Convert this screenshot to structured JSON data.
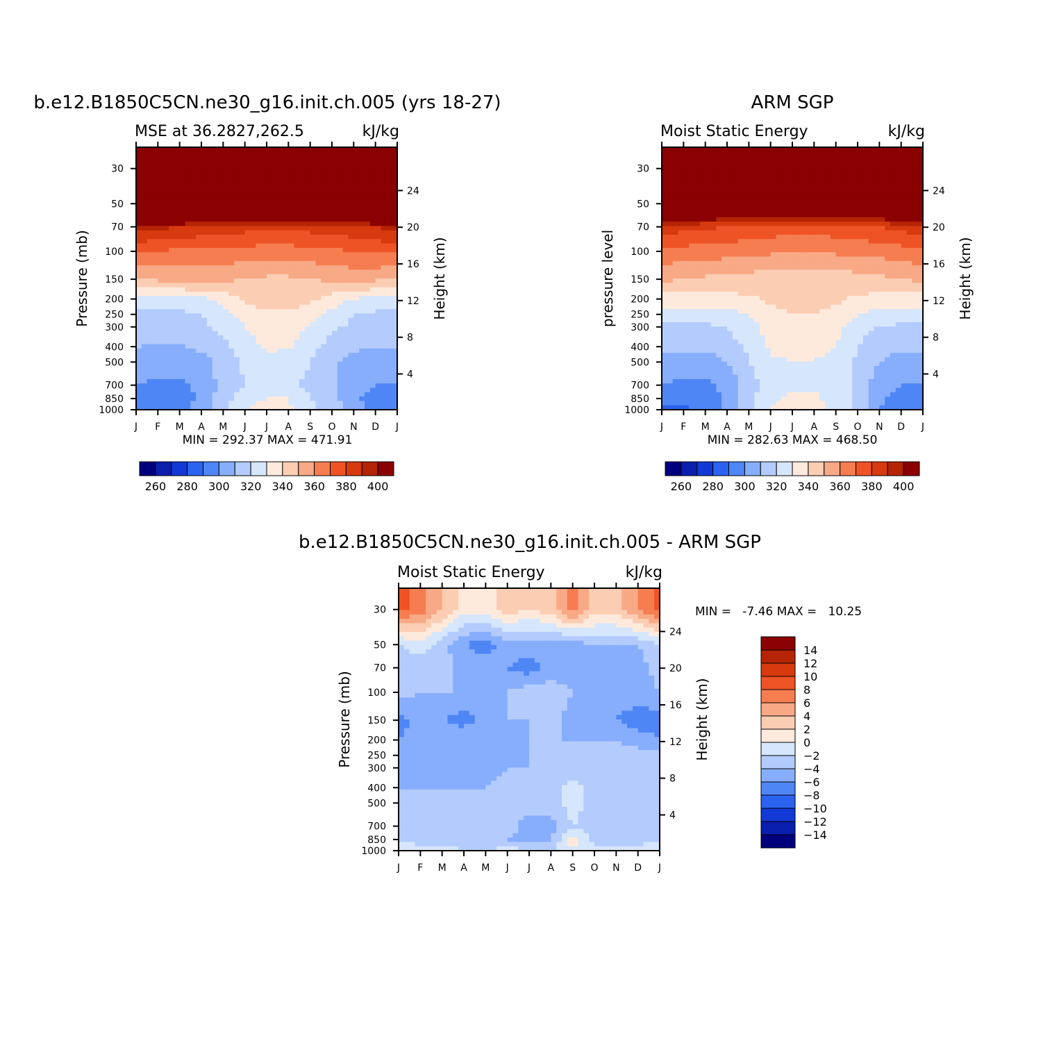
{
  "panel_a": {
    "title": "b.e12.B1850C5CN.ne30_g16.init.ch.005 (yrs 18-27)",
    "left_subtitle": "MSE at 36.2827,262.5",
    "right_subtitle": "kJ/kg",
    "ylabel": "Pressure (mb)",
    "right_ylabel": "Height (km)",
    "minmax": "MIN = 292.37 MAX = 471.91"
  },
  "panel_b": {
    "title": "ARM SGP",
    "left_subtitle": "Moist Static Energy",
    "right_subtitle": "kJ/kg",
    "ylabel": "pressure level",
    "right_ylabel": "Height (km)",
    "minmax": "MIN = 282.63 MAX = 468.50"
  },
  "panel_c": {
    "title": "b.e12.B1850C5CN.ne30_g16.init.ch.005 - ARM SGP",
    "left_subtitle": "Moist Static Energy",
    "right_subtitle": "kJ/kg",
    "ylabel": "Pressure (mb)",
    "right_ylabel": "Height (km)",
    "minmax": "MIN =   -7.46 MAX =   10.25"
  },
  "colors": {
    "scale": [
      "#00007f",
      "#0a1fae",
      "#1239d6",
      "#2b62ef",
      "#4f86f6",
      "#86aefc",
      "#b4cbfd",
      "#d5e6fd",
      "#feeadc",
      "#fbcdb3",
      "#f8a985",
      "#f67d50",
      "#ee5326",
      "#d63a0e",
      "#b42405",
      "#8b0000"
    ]
  },
  "chart_data": [
    {
      "type": "heatmap",
      "panel": "panel_a",
      "x": [
        "J",
        "F",
        "M",
        "A",
        "M",
        "J",
        "J",
        "A",
        "S",
        "O",
        "N",
        "D",
        "J"
      ],
      "pressure_ticks": [
        30,
        50,
        70,
        100,
        150,
        200,
        250,
        300,
        400,
        500,
        700,
        850,
        1000
      ],
      "height_ticks": [
        4,
        8,
        12,
        16,
        20,
        24
      ],
      "colorbar_levels": [
        260,
        270,
        280,
        290,
        300,
        310,
        320,
        330,
        340,
        350,
        360,
        370,
        380,
        390,
        400
      ],
      "colorbar_labels": [
        "260",
        "280",
        "300",
        "320",
        "340",
        "360",
        "380",
        "400"
      ],
      "units": "kJ/kg",
      "min": 292.37,
      "max": 471.91,
      "levels_mb": [
        30,
        50,
        70,
        100,
        150,
        200,
        250,
        300,
        400,
        500,
        700,
        850,
        1000
      ],
      "values": [
        [
          470,
          470,
          470,
          470,
          470,
          470,
          470,
          470,
          470,
          470,
          470,
          470,
          470
        ],
        [
          470,
          470,
          470,
          470,
          470,
          470,
          470,
          470,
          470,
          470,
          470,
          470,
          470
        ],
        [
          395,
          392,
          390,
          388,
          386,
          384,
          382,
          382,
          384,
          386,
          388,
          390,
          395
        ],
        [
          372,
          370,
          368,
          368,
          367,
          366,
          366,
          366,
          367,
          368,
          370,
          372,
          372
        ],
        [
          350,
          352,
          354,
          354,
          352,
          350,
          348,
          348,
          350,
          352,
          354,
          352,
          350
        ],
        [
          326,
          326,
          326,
          328,
          334,
          342,
          345,
          345,
          342,
          336,
          330,
          327,
          326
        ],
        [
          318,
          318,
          318,
          320,
          326,
          334,
          338,
          338,
          334,
          326,
          320,
          318,
          318
        ],
        [
          316,
          316,
          316,
          318,
          322,
          330,
          334,
          334,
          330,
          322,
          318,
          316,
          316
        ],
        [
          310,
          309,
          309,
          312,
          318,
          326,
          332,
          331,
          324,
          316,
          312,
          310,
          310
        ],
        [
          305,
          304,
          304,
          306,
          314,
          322,
          326,
          326,
          320,
          312,
          306,
          305,
          305
        ],
        [
          300,
          298,
          298,
          302,
          314,
          320,
          322,
          322,
          318,
          312,
          304,
          300,
          300
        ],
        [
          294,
          294,
          296,
          302,
          316,
          326,
          330,
          330,
          320,
          314,
          302,
          296,
          294
        ],
        [
          292,
          293,
          296,
          305,
          317,
          330,
          334,
          333,
          322,
          316,
          304,
          296,
          292
        ]
      ]
    },
    {
      "type": "heatmap",
      "panel": "panel_b",
      "x": [
        "J",
        "F",
        "M",
        "A",
        "M",
        "J",
        "J",
        "A",
        "S",
        "O",
        "N",
        "D",
        "J"
      ],
      "pressure_ticks": [
        30,
        50,
        70,
        100,
        150,
        200,
        250,
        300,
        400,
        500,
        700,
        850,
        1000
      ],
      "height_ticks": [
        4,
        8,
        12,
        16,
        20,
        24
      ],
      "colorbar_levels": [
        260,
        270,
        280,
        290,
        300,
        310,
        320,
        330,
        340,
        350,
        360,
        370,
        380,
        390,
        400
      ],
      "colorbar_labels": [
        "260",
        "280",
        "300",
        "320",
        "340",
        "360",
        "380",
        "400"
      ],
      "units": "kJ/kg",
      "min": 282.63,
      "max": 468.5,
      "levels_mb": [
        30,
        50,
        70,
        100,
        150,
        200,
        250,
        300,
        400,
        500,
        700,
        850,
        1000
      ],
      "values": [
        [
          468,
          468,
          468,
          468,
          468,
          468,
          468,
          468,
          468,
          468,
          468,
          468,
          468
        ],
        [
          440,
          440,
          440,
          440,
          440,
          440,
          440,
          440,
          440,
          440,
          440,
          440,
          440
        ],
        [
          385,
          384,
          382,
          380,
          378,
          376,
          375,
          375,
          376,
          378,
          380,
          384,
          385
        ],
        [
          368,
          366,
          365,
          364,
          363,
          362,
          361,
          361,
          362,
          363,
          364,
          366,
          368
        ],
        [
          352,
          350,
          348,
          348,
          346,
          344,
          343,
          343,
          344,
          346,
          348,
          350,
          352
        ],
        [
          335,
          336,
          336,
          337,
          338,
          342,
          344,
          344,
          342,
          338,
          337,
          336,
          335
        ],
        [
          326,
          326,
          326,
          327,
          330,
          336,
          340,
          340,
          336,
          330,
          327,
          326,
          326
        ],
        [
          318,
          318,
          318,
          320,
          326,
          334,
          338,
          338,
          334,
          324,
          320,
          318,
          318
        ],
        [
          312,
          312,
          312,
          316,
          322,
          332,
          336,
          336,
          330,
          320,
          314,
          312,
          312
        ],
        [
          306,
          305,
          305,
          310,
          320,
          328,
          329,
          329,
          326,
          318,
          310,
          306,
          306
        ],
        [
          300,
          298,
          298,
          302,
          316,
          324,
          328,
          328,
          324,
          318,
          304,
          300,
          300
        ],
        [
          294,
          293,
          296,
          302,
          316,
          328,
          332,
          332,
          326,
          318,
          302,
          296,
          294
        ],
        [
          289,
          288,
          292,
          302,
          316,
          330,
          334,
          334,
          328,
          318,
          300,
          292,
          289
        ]
      ]
    },
    {
      "type": "heatmap",
      "panel": "panel_c",
      "x": [
        "J",
        "F",
        "M",
        "A",
        "M",
        "J",
        "J",
        "A",
        "S",
        "O",
        "N",
        "D",
        "J"
      ],
      "pressure_ticks": [
        30,
        50,
        70,
        100,
        150,
        200,
        250,
        300,
        400,
        500,
        700,
        850,
        1000
      ],
      "height_ticks": [
        4,
        8,
        12,
        16,
        20,
        24
      ],
      "colorbar_levels": [
        -14,
        -12,
        -10,
        -8,
        -6,
        -4,
        -2,
        0,
        2,
        4,
        6,
        8,
        10,
        12,
        14
      ],
      "colorbar_labels": [
        "14",
        "12",
        "10",
        "8",
        "6",
        "4",
        "2",
        "0",
        "-2",
        "-4",
        "-6",
        "-8",
        "-10",
        "-12",
        "-14"
      ],
      "units": "kJ/kg",
      "min": -7.46,
      "max": 10.25,
      "levels_mb": [
        30,
        50,
        70,
        100,
        150,
        200,
        250,
        300,
        400,
        500,
        700,
        850,
        1000
      ],
      "values": [
        [
          9,
          7,
          4,
          1,
          1,
          3,
          2,
          3,
          7,
          3,
          3,
          6,
          9
        ],
        [
          -2,
          -1,
          -3,
          -6,
          -7,
          -5,
          -5,
          -5,
          -5,
          -4,
          -4,
          -4,
          -2
        ],
        [
          -3,
          -3,
          -3,
          -5,
          -5,
          -6,
          -7,
          -5,
          -5,
          -5,
          -5,
          -5,
          -3
        ],
        [
          -3,
          -4,
          -4,
          -4,
          -5,
          -4,
          -3,
          -3,
          -4,
          -5,
          -5,
          -5,
          -4
        ],
        [
          -7,
          -5,
          -6,
          -7,
          -5,
          -4,
          -4,
          -3,
          -5,
          -5,
          -6,
          -7,
          -7
        ],
        [
          -6,
          -5,
          -4,
          -4,
          -4,
          -5,
          -4,
          -4,
          -4,
          -4,
          -4,
          -5,
          -6
        ],
        [
          -5,
          -5,
          -5,
          -5,
          -5,
          -5,
          -4,
          -3,
          -3,
          -3,
          -3,
          -3,
          -3
        ],
        [
          -5,
          -5,
          -5,
          -5,
          -5,
          -4,
          -4,
          -4,
          -3,
          -3,
          -3,
          -3,
          -3
        ],
        [
          -4,
          -4,
          -4,
          -4,
          -4,
          -3,
          -3,
          -3,
          -1,
          -3,
          -3,
          -3,
          -3
        ],
        [
          -3,
          -3,
          -3,
          -3,
          -3,
          -3,
          -3,
          -3,
          -1,
          -3,
          -3,
          -3,
          -3
        ],
        [
          -3,
          -3,
          -3,
          -3,
          -3,
          -3,
          -5,
          -5,
          -2,
          -3,
          -3,
          -3,
          -3
        ],
        [
          -2,
          -3,
          -3,
          -3,
          -4,
          -4,
          -5,
          -4,
          1,
          -3,
          -3,
          -3,
          -2
        ],
        [
          0,
          -1,
          -1,
          -2,
          -2,
          -1,
          -2,
          -2,
          0,
          -1,
          -1,
          -1,
          0
        ]
      ]
    }
  ]
}
